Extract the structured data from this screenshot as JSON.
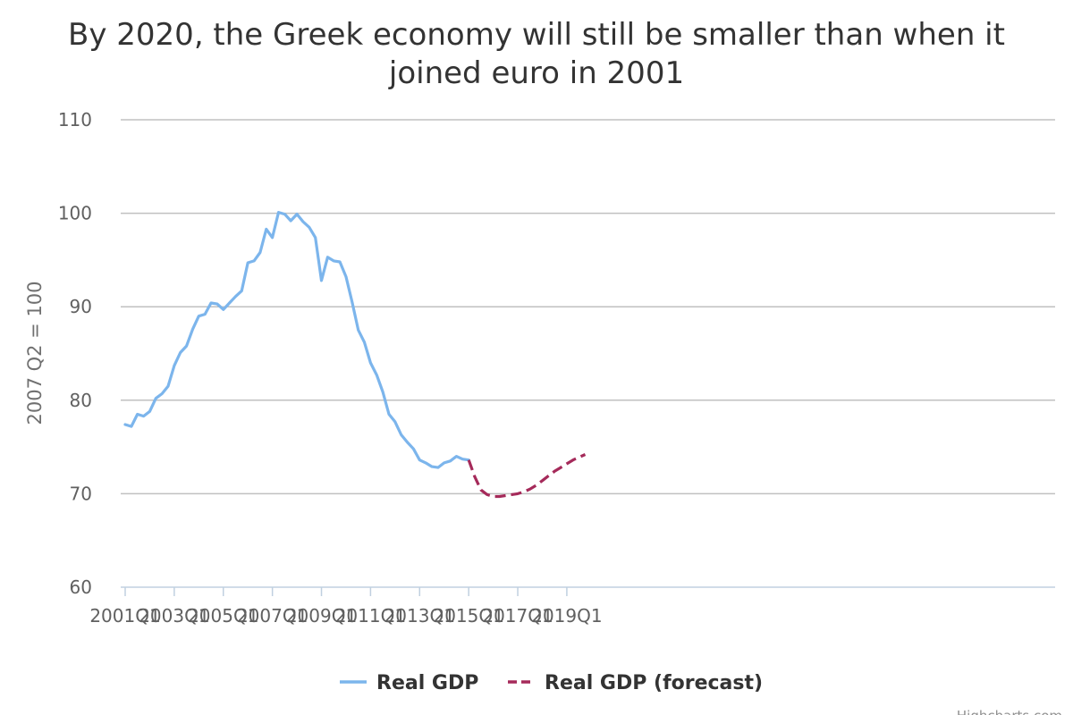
{
  "chart_data": {
    "type": "line",
    "title_lines": [
      "By 2020, the Greek economy will still be smaller than when it",
      "joined euro in 2001"
    ],
    "ylabel": "2007 Q2 = 100",
    "ylim": [
      60,
      110
    ],
    "y_ticks": [
      60,
      70,
      80,
      90,
      100,
      110
    ],
    "x_tick_labels": [
      "2001Q1",
      "2003Q1",
      "2005Q1",
      "2007Q1",
      "2009Q1",
      "2011Q1",
      "2013Q1",
      "2015Q1",
      "2017Q1",
      "2019Q1"
    ],
    "grid": true,
    "legend_position": "bottom-center",
    "series": [
      {
        "name": "Real GDP",
        "color": "#7cb5ec",
        "dash": "solid",
        "x": [
          "2001Q1",
          "2001Q2",
          "2001Q3",
          "2001Q4",
          "2002Q1",
          "2002Q2",
          "2002Q3",
          "2002Q4",
          "2003Q1",
          "2003Q2",
          "2003Q3",
          "2003Q4",
          "2004Q1",
          "2004Q2",
          "2004Q3",
          "2004Q4",
          "2005Q1",
          "2005Q2",
          "2005Q3",
          "2005Q4",
          "2006Q1",
          "2006Q2",
          "2006Q3",
          "2006Q4",
          "2007Q1",
          "2007Q2",
          "2007Q3",
          "2007Q4",
          "2008Q1",
          "2008Q2",
          "2008Q3",
          "2008Q4",
          "2009Q1",
          "2009Q2",
          "2009Q3",
          "2009Q4",
          "2010Q1",
          "2010Q2",
          "2010Q3",
          "2010Q4",
          "2011Q1",
          "2011Q2",
          "2011Q3",
          "2011Q4",
          "2012Q1",
          "2012Q2",
          "2012Q3",
          "2012Q4",
          "2013Q1",
          "2013Q2",
          "2013Q3",
          "2013Q4",
          "2014Q1",
          "2014Q2",
          "2014Q3",
          "2014Q4",
          "2015Q1"
        ],
        "values": [
          77.4,
          77.2,
          78.5,
          78.3,
          78.8,
          80.2,
          80.7,
          81.5,
          83.7,
          85.1,
          85.8,
          87.6,
          89.0,
          89.2,
          90.4,
          90.3,
          89.7,
          90.4,
          91.1,
          91.7,
          94.7,
          94.9,
          95.8,
          98.3,
          97.4,
          100.1,
          99.9,
          99.2,
          99.9,
          99.1,
          98.5,
          97.4,
          92.8,
          95.3,
          94.9,
          94.8,
          93.2,
          90.5,
          87.5,
          86.2,
          84.0,
          82.7,
          80.9,
          78.5,
          77.7,
          76.3,
          75.5,
          74.8,
          73.6,
          73.3,
          72.9,
          72.8,
          73.3,
          73.5,
          74.0,
          73.7,
          73.6
        ]
      },
      {
        "name": "Real GDP (forecast)",
        "color": "#a52a5a",
        "dash": "dashed",
        "x": [
          "2015Q1",
          "2015Q2",
          "2015Q3",
          "2015Q4",
          "2016Q1",
          "2016Q2",
          "2016Q3",
          "2016Q4",
          "2017Q1",
          "2017Q2",
          "2017Q3",
          "2017Q4",
          "2018Q1",
          "2018Q2",
          "2018Q3",
          "2018Q4",
          "2019Q1",
          "2019Q2",
          "2019Q3",
          "2019Q4"
        ],
        "values": [
          73.6,
          71.8,
          70.4,
          69.9,
          69.7,
          69.7,
          69.8,
          69.9,
          70.0,
          70.2,
          70.5,
          70.9,
          71.4,
          71.9,
          72.4,
          72.8,
          73.2,
          73.6,
          73.9,
          74.2
        ]
      }
    ],
    "credit": "Highcharts.com"
  }
}
